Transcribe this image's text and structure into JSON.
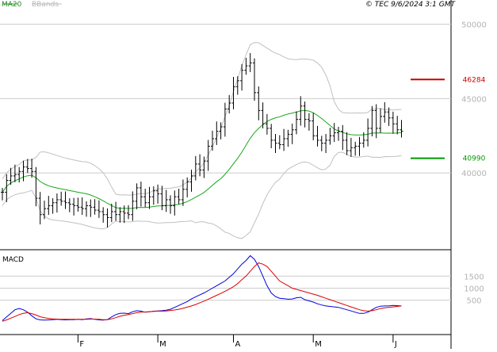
{
  "header": {
    "ma_label": "MA20",
    "bb_label": "BBands",
    "copyright": "© TEC 9/6/2024 3:1 GMT"
  },
  "macd_label": "MACD",
  "colors": {
    "candle": "#000000",
    "ma": "#1aa61a",
    "bands": "#c0c0c0",
    "resistance": "#cc0000",
    "support": "#009900",
    "macd": "#0000dd",
    "signal": "#dd0000",
    "grid": "#cccccc"
  },
  "chart_data": [
    {
      "type": "candlestick",
      "y_ticks": [
        {
          "value": 50000,
          "label": "50000"
        },
        {
          "value": 45000,
          "label": "45000"
        },
        {
          "value": 40000,
          "label": "40000"
        }
      ],
      "ylim": [
        35000,
        51200
      ],
      "x_ticks": [
        {
          "index": 18,
          "label": "F"
        },
        {
          "index": 37,
          "label": "M"
        },
        {
          "index": 55,
          "label": "A"
        },
        {
          "index": 74,
          "label": "M"
        },
        {
          "index": 93,
          "label": "J"
        }
      ],
      "markers": [
        {
          "name": "resistance",
          "label": "46284",
          "value": 46284
        },
        {
          "name": "support",
          "label": "40990",
          "value": 40990
        }
      ],
      "close": [
        38700,
        39500,
        39800,
        39900,
        40100,
        40400,
        40300,
        40100,
        38300,
        37200,
        37600,
        37800,
        38000,
        38200,
        38100,
        38000,
        37900,
        37800,
        37700,
        37600,
        37800,
        37700,
        37500,
        37400,
        37200,
        37000,
        37400,
        37200,
        37400,
        37300,
        37200,
        38100,
        39000,
        38400,
        38000,
        38400,
        38800,
        38600,
        37800,
        38200,
        37800,
        38400,
        38200,
        38900,
        39400,
        39800,
        40600,
        40200,
        40800,
        41800,
        42300,
        42800,
        43100,
        44300,
        44700,
        45800,
        46200,
        46900,
        47200,
        47400,
        45400,
        44200,
        43300,
        43000,
        42200,
        42000,
        41900,
        42300,
        42600,
        42900,
        43600,
        44500,
        43600,
        43500,
        42500,
        42200,
        42000,
        42200,
        42500,
        42700,
        42800,
        42200,
        41500,
        41700,
        41800,
        42000,
        42200,
        43000,
        44200,
        43000,
        43800,
        44100,
        43700,
        43300,
        42900,
        42800
      ]
    },
    {
      "type": "line",
      "name": "MACD",
      "y_ticks": [
        {
          "value": 1500,
          "label": "1500"
        },
        {
          "value": 1000,
          "label": "1000"
        },
        {
          "value": 500,
          "label": "500"
        }
      ],
      "ylim": [
        -800,
        2500
      ],
      "series": [
        {
          "name": "MACD",
          "values": [
            -350,
            -200,
            -50,
            100,
            150,
            100,
            0,
            -150,
            -280,
            -320,
            -330,
            -320,
            -310,
            -300,
            -310,
            -320,
            -310,
            -310,
            -300,
            -310,
            -280,
            -270,
            -300,
            -320,
            -330,
            -310,
            -200,
            -100,
            -50,
            -40,
            -60,
            20,
            60,
            40,
            0,
            20,
            40,
            50,
            60,
            80,
            120,
            200,
            280,
            360,
            440,
            550,
            640,
            720,
            800,
            900,
            1000,
            1100,
            1200,
            1300,
            1450,
            1600,
            1800,
            2000,
            2150,
            2350,
            2200,
            1900,
            1500,
            1100,
            800,
            650,
            580,
            560,
            540,
            550,
            600,
            620,
            520,
            470,
            420,
            350,
            300,
            260,
            240,
            220,
            200,
            150,
            100,
            50,
            0,
            -50,
            -50,
            0,
            100,
            200,
            250,
            260,
            260,
            280,
            270,
            260
          ]
        },
        {
          "name": "Signal",
          "values": [
            -380,
            -320,
            -250,
            -180,
            -100,
            -50,
            -20,
            -60,
            -120,
            -190,
            -230,
            -260,
            -280,
            -290,
            -300,
            -300,
            -300,
            -300,
            -300,
            -300,
            -300,
            -290,
            -290,
            -300,
            -310,
            -310,
            -280,
            -230,
            -170,
            -130,
            -100,
            -60,
            -20,
            0,
            10,
            20,
            30,
            40,
            40,
            50,
            70,
            90,
            120,
            160,
            210,
            260,
            320,
            390,
            460,
            540,
            620,
            700,
            780,
            870,
            960,
            1060,
            1190,
            1350,
            1500,
            1700,
            1900,
            2050,
            2000,
            1900,
            1700,
            1500,
            1300,
            1200,
            1100,
            1000,
            950,
            900,
            850,
            800,
            750,
            700,
            640,
            580,
            520,
            460,
            400,
            340,
            280,
            220,
            160,
            100,
            60,
            40,
            60,
            100,
            150,
            180,
            200,
            220,
            240,
            260
          ]
        }
      ]
    }
  ]
}
